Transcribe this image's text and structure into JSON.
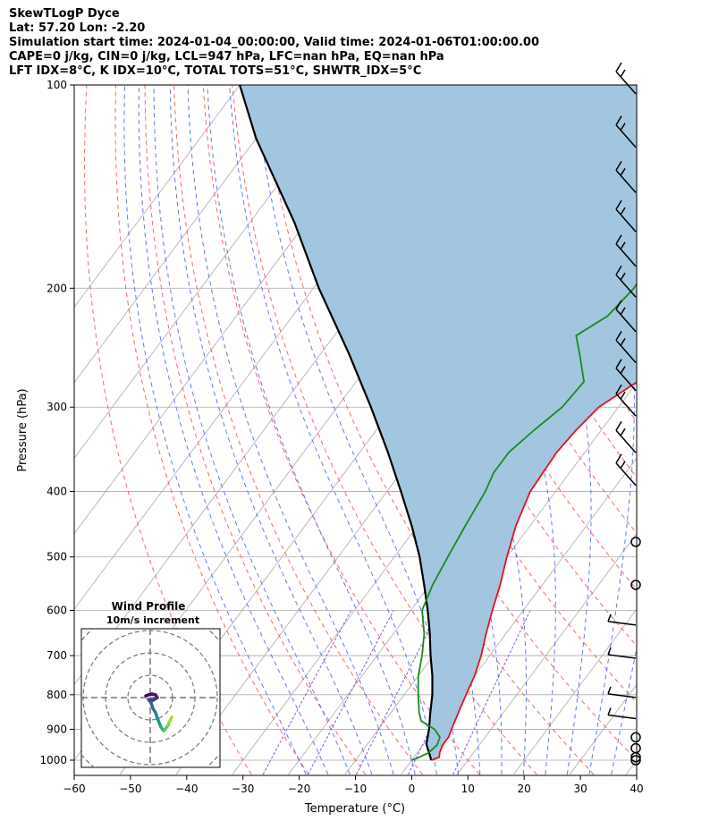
{
  "header": {
    "lines": [
      "SkewTLogP Dyce",
      "Lat: 57.20   Lon: -2.20",
      "Simulation start time: 2024-01-04_00:00:00, Valid time: 2024-01-06T01:00:00.00",
      "CAPE=0 j/kg, CIN=0 j/kg, LCL=947 hPa, LFC=nan hPa, EQ=nan hPa",
      "LFT IDX=8°C, K IDX=10°C, TOTAL TOTS=51°C, SHWTR_IDX=5°C"
    ]
  },
  "chart_data": {
    "type": "line",
    "subtype": "skew-t log-p",
    "xlabel": "Temperature (°C)",
    "ylabel": "Pressure (hPa)",
    "xlim": [
      -60,
      40
    ],
    "ylim": [
      1050,
      100
    ],
    "x_ticks": [
      "−60",
      "−50",
      "−40",
      "−30",
      "−20",
      "−10",
      "0",
      "10",
      "20",
      "30",
      "40"
    ],
    "y_ticks": [
      "100",
      "200",
      "300",
      "400",
      "500",
      "600",
      "700",
      "800",
      "900",
      "1000"
    ],
    "x_tick_values": [
      -60,
      -50,
      -40,
      -30,
      -20,
      -10,
      0,
      10,
      20,
      30,
      40
    ],
    "y_tick_values": [
      100,
      200,
      300,
      400,
      500,
      600,
      700,
      800,
      900,
      1000
    ],
    "grid": true,
    "colors": {
      "temperature": "#e8101a",
      "dewpoint": "#1a8a1a",
      "parcel": "#000000",
      "shade": "#a3c6e0",
      "dry_adiabat": "#f05050",
      "moist_adiabat": "#4a64e8",
      "mixing_ratio": "#8a5ad8",
      "isotherm": "#aaaaaa"
    },
    "series": [
      {
        "key": "temperature",
        "points": [
          [
            3.5,
            1000
          ],
          [
            4.5,
            990
          ],
          [
            4.0,
            975
          ],
          [
            3.5,
            950
          ],
          [
            3.5,
            925
          ],
          [
            3.0,
            900
          ],
          [
            2.5,
            875
          ],
          [
            2.0,
            850
          ],
          [
            1.0,
            800
          ],
          [
            0.0,
            750
          ],
          [
            -1.5,
            700
          ],
          [
            -3.5,
            650
          ],
          [
            -5.5,
            600
          ],
          [
            -7.5,
            550
          ],
          [
            -10.0,
            500
          ],
          [
            -12.5,
            450
          ],
          [
            -14.5,
            400
          ],
          [
            -15.0,
            350
          ],
          [
            -14.5,
            325
          ],
          [
            -13.5,
            300
          ],
          [
            -10.0,
            275
          ],
          [
            -7.0,
            250
          ],
          [
            -4.5,
            225
          ],
          [
            -3.0,
            200
          ],
          [
            -2.0,
            175
          ],
          [
            -1.5,
            150
          ],
          [
            -1.0,
            125
          ],
          [
            0.5,
            100
          ]
        ]
      },
      {
        "key": "dewpoint",
        "points": [
          [
            0.0,
            1000
          ],
          [
            1.0,
            990
          ],
          [
            2.0,
            975
          ],
          [
            2.5,
            950
          ],
          [
            2.0,
            925
          ],
          [
            0.0,
            900
          ],
          [
            -3.5,
            875
          ],
          [
            -5.0,
            850
          ],
          [
            -7.5,
            800
          ],
          [
            -10.0,
            750
          ],
          [
            -12.0,
            700
          ],
          [
            -14.5,
            650
          ],
          [
            -18.0,
            600
          ],
          [
            -19.5,
            550
          ],
          [
            -20.5,
            500
          ],
          [
            -21.5,
            450
          ],
          [
            -22.5,
            400
          ],
          [
            -23.5,
            375
          ],
          [
            -23.5,
            350
          ],
          [
            -22.0,
            325
          ],
          [
            -20.0,
            300
          ],
          [
            -19.5,
            275
          ],
          [
            -24.0,
            250
          ],
          [
            -27.0,
            235
          ],
          [
            -24.0,
            220
          ],
          [
            -23.0,
            200
          ],
          [
            -23.5,
            180
          ],
          [
            -23.5,
            160
          ],
          [
            -24.5,
            140
          ],
          [
            -25.5,
            120
          ],
          [
            -27.0,
            100
          ]
        ]
      },
      {
        "key": "parcel",
        "points": [
          [
            3.5,
            1000
          ],
          [
            0.5,
            947
          ],
          [
            -1.0,
            900
          ],
          [
            -3.0,
            850
          ],
          [
            -5.0,
            800
          ],
          [
            -7.5,
            750
          ],
          [
            -10.5,
            700
          ],
          [
            -13.5,
            650
          ],
          [
            -17.0,
            600
          ],
          [
            -21.0,
            550
          ],
          [
            -25.5,
            500
          ],
          [
            -31.0,
            450
          ],
          [
            -37.5,
            400
          ],
          [
            -45.0,
            350
          ],
          [
            -54.0,
            300
          ],
          [
            -65.0,
            250
          ],
          [
            -79.0,
            200
          ],
          [
            -92.0,
            160
          ],
          [
            -110.0,
            120
          ],
          [
            -120.0,
            100
          ]
        ]
      }
    ],
    "wind_barbs": [
      {
        "p": 100
      },
      {
        "p": 120
      },
      {
        "p": 140
      },
      {
        "p": 160
      },
      {
        "p": 180
      },
      {
        "p": 200
      },
      {
        "p": 225
      },
      {
        "p": 250
      },
      {
        "p": 275
      },
      {
        "p": 300
      },
      {
        "p": 340
      },
      {
        "p": 380
      },
      {
        "p": 475,
        "calm": true
      },
      {
        "p": 550,
        "calm": true
      },
      {
        "p": 625
      },
      {
        "p": 700
      },
      {
        "p": 800
      },
      {
        "p": 860
      },
      {
        "p": 925,
        "calm": true
      },
      {
        "p": 960,
        "calm": true
      },
      {
        "p": 990,
        "calm": true
      },
      {
        "p": 1000,
        "calm": true
      }
    ],
    "hodograph": {
      "title": "Wind Profile",
      "subtitle": "10m/s increment"
    }
  }
}
